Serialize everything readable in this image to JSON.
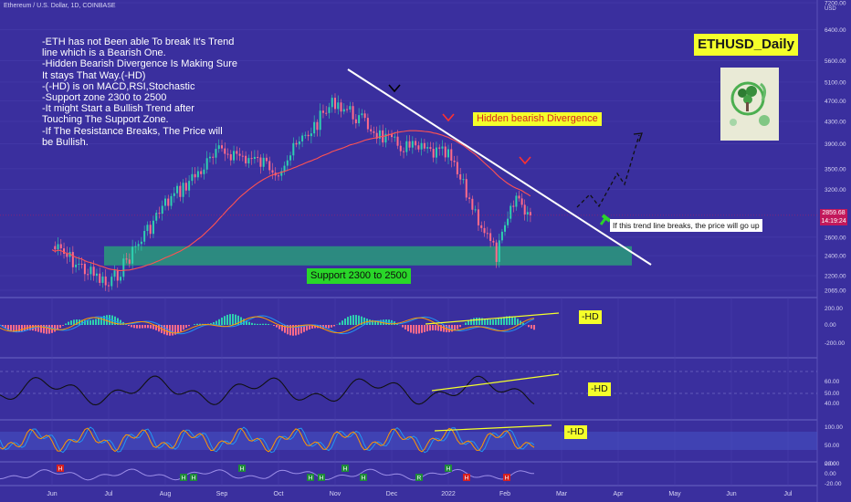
{
  "header": "Ethereum / U.S. Dollar, 1D, COINBASE",
  "title": "ETHUSD_Daily",
  "notes": [
    "-ETH has not Been able To break It's Trend",
    "line which is a Bearish One.",
    "-Hidden Bearish Divergence Is Making Sure",
    "It stays That Way.(-HD)",
    "-(-HD) is on MACD,RSI,Stochastic",
    "-Support zone 2300 to 2500",
    "-It might Start a Bullish Trend after",
    "Touching The Support Zone.",
    "-If The Resistance Breaks, The Price will",
    "be Bullish."
  ],
  "annotations": {
    "hidden_divergence": "Hidden bearish Divergence",
    "support": "Support 2300 to 2500",
    "trend_note": "If this trend line breaks, the price will go up",
    "hd_macd": "-HD",
    "hd_rsi": "-HD",
    "hd_stoch": "-HD"
  },
  "price_tag": {
    "price": "2859.68",
    "countdown": "14:19:24"
  },
  "colors": {
    "background": "#3a2f9e",
    "up": "#2ed0b0",
    "down": "#ff6b8a",
    "highlight": "#f4ff2a",
    "support_zone": "#2a9a7a",
    "ma": "#ff5252",
    "trendline": "#ffffff"
  },
  "chart_data": {
    "type": "candlestick",
    "instrument": "Ethereum / U.S. Dollar",
    "timeframe": "1D",
    "exchange": "COINBASE",
    "x_ticks": [
      "Jun",
      "Jul",
      "Aug",
      "Sep",
      "Oct",
      "Nov",
      "Dec",
      "2022",
      "Feb",
      "Mar",
      "Apr",
      "May",
      "Jun",
      "Jul"
    ],
    "y_unit": "USD",
    "y_ticks": [
      7200,
      6400,
      5600,
      5100,
      4700,
      4300,
      3900,
      3500,
      3200,
      2600,
      2400,
      2200,
      2065
    ],
    "approx_close_path": [
      {
        "x": "Jun",
        "y": 2500
      },
      {
        "x": "Jul",
        "y": 2100
      },
      {
        "x": "Aug",
        "y": 3000
      },
      {
        "x": "Sep",
        "y": 3800
      },
      {
        "x": "Oct",
        "y": 3500
      },
      {
        "x": "Nov",
        "y": 4700
      },
      {
        "x": "Dec",
        "y": 3900
      },
      {
        "x": "2022",
        "y": 3700
      },
      {
        "x": "Feb",
        "y": 2400
      },
      {
        "x": "Feb",
        "y": 3100
      },
      {
        "x": "Feb",
        "y": 2860
      }
    ],
    "support_zone": [
      2300,
      2500
    ],
    "panels": [
      {
        "name": "MACD",
        "y_ticks": [
          200,
          0,
          -200
        ],
        "annotation": "-HD"
      },
      {
        "name": "RSI",
        "y_ticks": [
          60,
          50,
          40
        ],
        "annotation": "-HD"
      },
      {
        "name": "Stochastic RSI",
        "y_ticks": [
          100,
          50,
          0
        ],
        "annotation": "-HD"
      },
      {
        "name": "Oscillator",
        "y_ticks": [
          20,
          0,
          -20
        ],
        "markers": [
          "H",
          "R"
        ]
      }
    ]
  }
}
